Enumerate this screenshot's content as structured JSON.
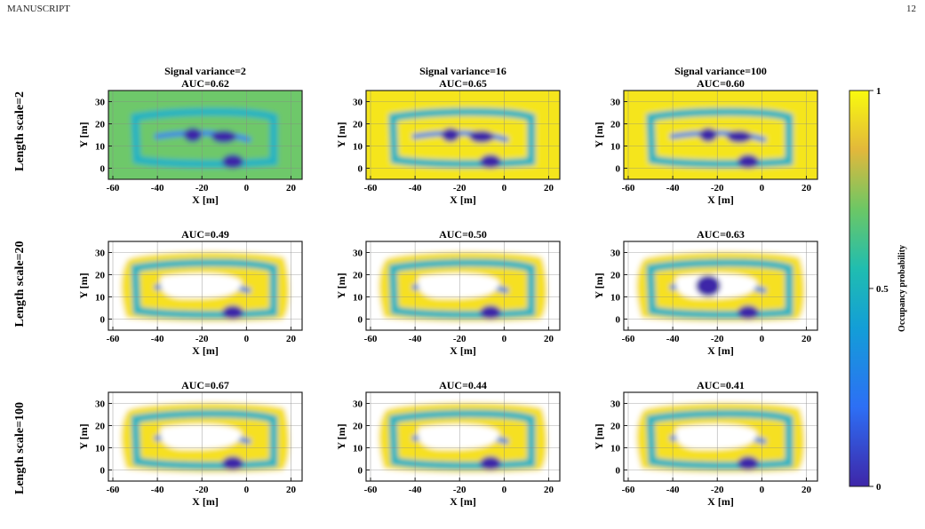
{
  "header": {
    "left": "MANUSCRIPT",
    "page_number": "12"
  },
  "figure": {
    "col_titles": [
      "Signal variance=2",
      "Signal variance=16",
      "Signal variance=100"
    ],
    "row_labels": [
      "Length scale=2",
      "Length scale=20",
      "Length scale=100"
    ],
    "xlabel": "X [m]",
    "ylabel": "Y [m]",
    "colorbar": {
      "label": "Occupancy probability",
      "ticks": [
        "1",
        "0.5",
        "0"
      ]
    }
  },
  "chart_data": {
    "type": "heatmap",
    "colormap": "parula",
    "xlim": [
      -62,
      25
    ],
    "ylim": [
      -5,
      35
    ],
    "xticks": [
      -60,
      -40,
      -20,
      0,
      20
    ],
    "yticks": [
      0,
      10,
      20,
      30
    ],
    "panels": [
      {
        "row": 0,
        "col": 0,
        "auc": "AUC=0.62"
      },
      {
        "row": 0,
        "col": 1,
        "auc": "AUC=0.65"
      },
      {
        "row": 0,
        "col": 2,
        "auc": "AUC=0.60"
      },
      {
        "row": 1,
        "col": 0,
        "auc": "AUC=0.49"
      },
      {
        "row": 1,
        "col": 1,
        "auc": "AUC=0.50"
      },
      {
        "row": 1,
        "col": 2,
        "auc": "AUC=0.63"
      },
      {
        "row": 2,
        "col": 0,
        "auc": "AUC=0.67"
      },
      {
        "row": 2,
        "col": 1,
        "auc": "AUC=0.44"
      },
      {
        "row": 2,
        "col": 2,
        "auc": "AUC=0.41"
      }
    ],
    "colorbar_range": [
      0,
      1
    ],
    "colors": {
      "high": "#F9FB0E",
      "mid": "#13BEB6",
      "low": "#3E26A8"
    }
  }
}
